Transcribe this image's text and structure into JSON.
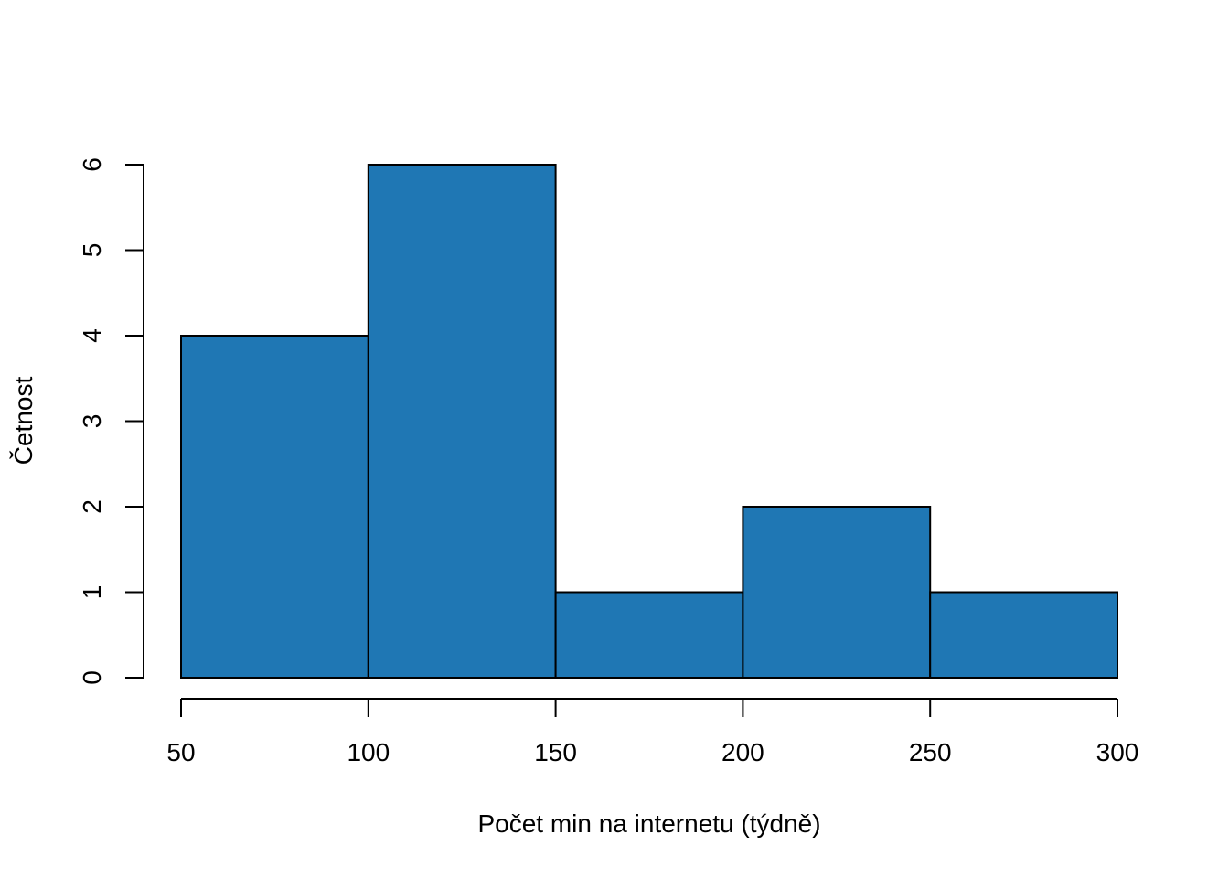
{
  "chart_data": {
    "type": "histogram",
    "title": "",
    "xlabel": "Počet min na internetu (týdně)",
    "ylabel": "Četnost",
    "bins": [
      {
        "from": 50,
        "to": 100,
        "count": 4
      },
      {
        "from": 100,
        "to": 150,
        "count": 6
      },
      {
        "from": 150,
        "to": 200,
        "count": 1
      },
      {
        "from": 200,
        "to": 250,
        "count": 2
      },
      {
        "from": 250,
        "to": 300,
        "count": 1
      }
    ],
    "xticks": [
      50,
      100,
      150,
      200,
      250,
      300
    ],
    "yticks": [
      0,
      1,
      2,
      3,
      4,
      5,
      6
    ],
    "xlim": [
      50,
      300
    ],
    "ylim": [
      0,
      6
    ],
    "grid": false,
    "bar_color": "#1f77b4",
    "edge_color": "#000000"
  }
}
